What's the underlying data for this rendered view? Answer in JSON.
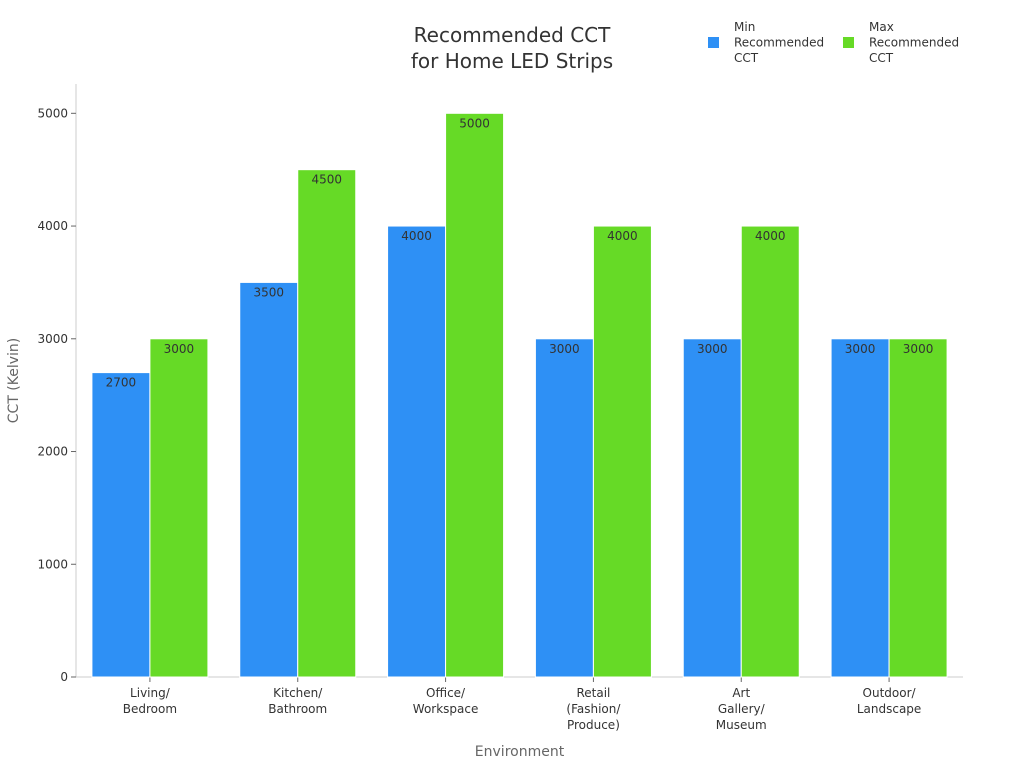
{
  "chart_data": {
    "type": "bar",
    "title": "Recommended CCT\nfor Home LED Strips",
    "xlabel": "Environment",
    "ylabel": "CCT (Kelvin)",
    "categories": [
      "Living/\nBedroom",
      "Kitchen/\nBathroom",
      "Office/\nWorkspace",
      "Retail\n(Fashion/\nProduce)",
      "Art\nGallery/\nMuseum",
      "Outdoor/\nLandscape"
    ],
    "series": [
      {
        "name": "Min\nRecommended\nCCT",
        "color": "#2e90f5",
        "values": [
          2700,
          3500,
          4000,
          3000,
          3000,
          3000
        ]
      },
      {
        "name": "Max\nRecommended\nCCT",
        "color": "#66da26",
        "values": [
          3000,
          4500,
          5000,
          4000,
          4000,
          3000
        ]
      }
    ],
    "yticks": [
      0,
      1000,
      2000,
      3000,
      4000,
      5000
    ],
    "ylim": [
      0,
      5260
    ],
    "legend_position": "top-right",
    "grid": false
  }
}
